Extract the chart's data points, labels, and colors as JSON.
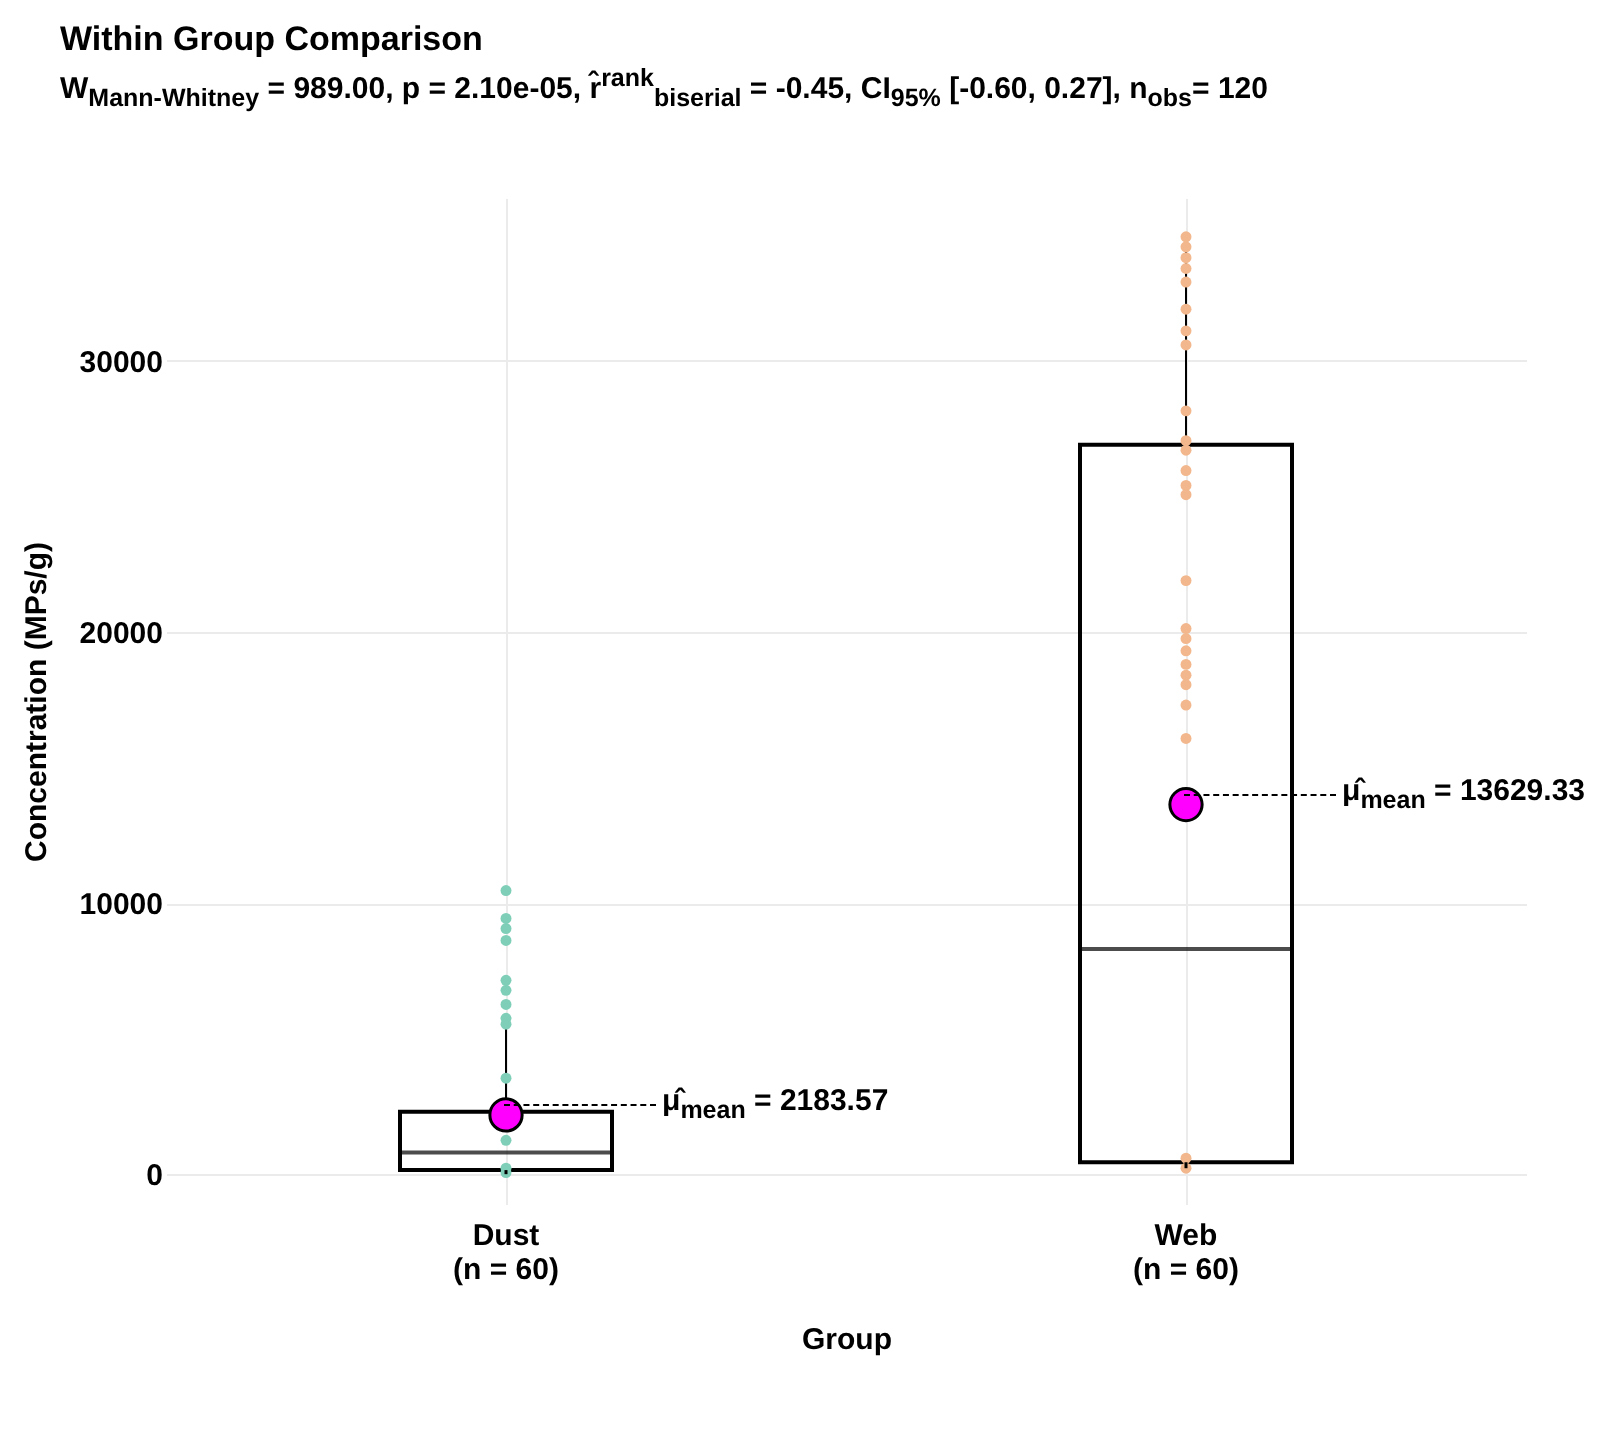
{
  "chart_data": {
    "type": "box",
    "title": "Within Group Comparison",
    "subtitle": "W$_{Mann-Whitney}$ = 989.00, p = 2.10e-05, r̂$^{rank}$$_{biserial}$ = -0.45, CI$_{95%}$ [-0.60, 0.27], n$_{obs}$= 120",
    "xlabel": "Group",
    "ylabel": "Concentration (MPs/g)",
    "categories": [
      "Dust\n(n = 60)",
      "Web\n(n = 60)"
    ],
    "boxes": [
      {
        "low": 0,
        "q1": 150,
        "median": 800,
        "q3": 2300,
        "high": 5530
      },
      {
        "low": 220,
        "q1": 440,
        "median": 8300,
        "q3": 26900,
        "high": 34570
      }
    ],
    "series": [
      {
        "type": "scatter",
        "color": "#7fcfb8",
        "x": [
          "Dust\n(n = 60)",
          "Dust\n(n = 60)",
          "Dust\n(n = 60)",
          "Dust\n(n = 60)",
          "Dust\n(n = 60)",
          "Dust\n(n = 60)",
          "Dust\n(n = 60)",
          "Dust\n(n = 60)",
          "Dust\n(n = 60)",
          "Dust\n(n = 60)",
          "Dust\n(n = 60)",
          "Dust\n(n = 60)",
          "Dust\n(n = 60)"
        ],
        "values": [
          10460,
          9430,
          9060,
          8620,
          7150,
          6780,
          6260,
          5750,
          5530,
          3540,
          1250,
          220,
          60
        ]
      },
      {
        "type": "scatter",
        "color": "#f2b78c",
        "x": [
          "Web\n(n = 60)",
          "Web\n(n = 60)",
          "Web\n(n = 60)",
          "Web\n(n = 60)",
          "Web\n(n = 60)",
          "Web\n(n = 60)",
          "Web\n(n = 60)",
          "Web\n(n = 60)",
          "Web\n(n = 60)",
          "Web\n(n = 60)",
          "Web\n(n = 60)",
          "Web\n(n = 60)",
          "Web\n(n = 60)",
          "Web\n(n = 60)",
          "Web\n(n = 60)",
          "Web\n(n = 60)",
          "Web\n(n = 60)",
          "Web\n(n = 60)",
          "Web\n(n = 60)",
          "Web\n(n = 60)",
          "Web\n(n = 60)",
          "Web\n(n = 60)",
          "Web\n(n = 60)",
          "Web\n(n = 60)",
          "Web\n(n = 60)"
        ],
        "values": [
          34570,
          34200,
          33800,
          33400,
          32900,
          31900,
          31100,
          30580,
          28150,
          27050,
          26700,
          25950,
          25400,
          25060,
          21890,
          20120,
          19750,
          19300,
          18800,
          18400,
          18050,
          17300,
          16070,
          590,
          220
        ]
      },
      {
        "type": "scatter",
        "color": "#ff00ff",
        "x": [
          "Dust\n(n = 60)",
          "Web\n(n = 60)"
        ],
        "values": [
          2183.57,
          13629.33
        ]
      }
    ],
    "marker": "circle",
    "ylim": [
      -1100,
      36000
    ],
    "yticks": [
      0,
      10000,
      20000,
      30000
    ],
    "grid": true,
    "annotations": [
      {
        "text": "μ̂$_{mean}$ = 2183.57",
        "x": "Dust\n(n = 60)",
        "y": 2183.57
      },
      {
        "text": "μ̂$_{mean}$ = 13629.33",
        "x": "Web\n(n = 60)",
        "y": 13629.33
      }
    ]
  }
}
